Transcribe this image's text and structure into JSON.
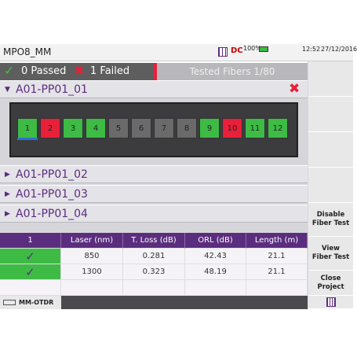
{
  "header": {
    "title": "MPO8_MM",
    "battery": "100%",
    "time": "12:52",
    "date": "27/12/2016"
  },
  "status": {
    "passed": "0 Passed",
    "failed": "1 Failed",
    "tested": "Tested Fibers 1/80"
  },
  "groups": [
    {
      "label": "A01-PP01_01",
      "fibers": [
        {
          "label": "1",
          "color": "#3dbb45"
        },
        {
          "label": "2",
          "color": "#e8203a"
        },
        {
          "label": "3",
          "color": "#3dbb45"
        },
        {
          "label": "4",
          "color": "#3dbb45"
        },
        {
          "label": "5",
          "color": "#6a6a6a"
        },
        {
          "label": "6",
          "color": "#6a6a6a"
        },
        {
          "label": "7",
          "color": "#6a6a6a"
        },
        {
          "label": "8",
          "color": "#6a6a6a"
        },
        {
          "label": "9",
          "color": "#3dbb45"
        },
        {
          "label": "10",
          "color": "#e8203a"
        },
        {
          "label": "11",
          "color": "#3dbb45"
        },
        {
          "label": "12",
          "color": "#3dbb45"
        }
      ]
    },
    {
      "label": "A01-PP01_02"
    },
    {
      "label": "A01-PP01_03"
    },
    {
      "label": "A01-PP01_04"
    }
  ],
  "table": {
    "columns": [
      "1",
      "Laser (nm)",
      "T. Loss (dB)",
      "ORL (dB)",
      "Length (m)"
    ],
    "rows": [
      [
        "850",
        "0.281",
        "42.43",
        "21.1"
      ],
      [
        "1300",
        "0.323",
        "48.19",
        "21.1"
      ]
    ]
  },
  "sidebar": {
    "buttons": [
      "Disable Fiber Test",
      "View Fiber Test",
      "Close Project"
    ]
  },
  "footer": {
    "tab": "MM-OTDR"
  }
}
